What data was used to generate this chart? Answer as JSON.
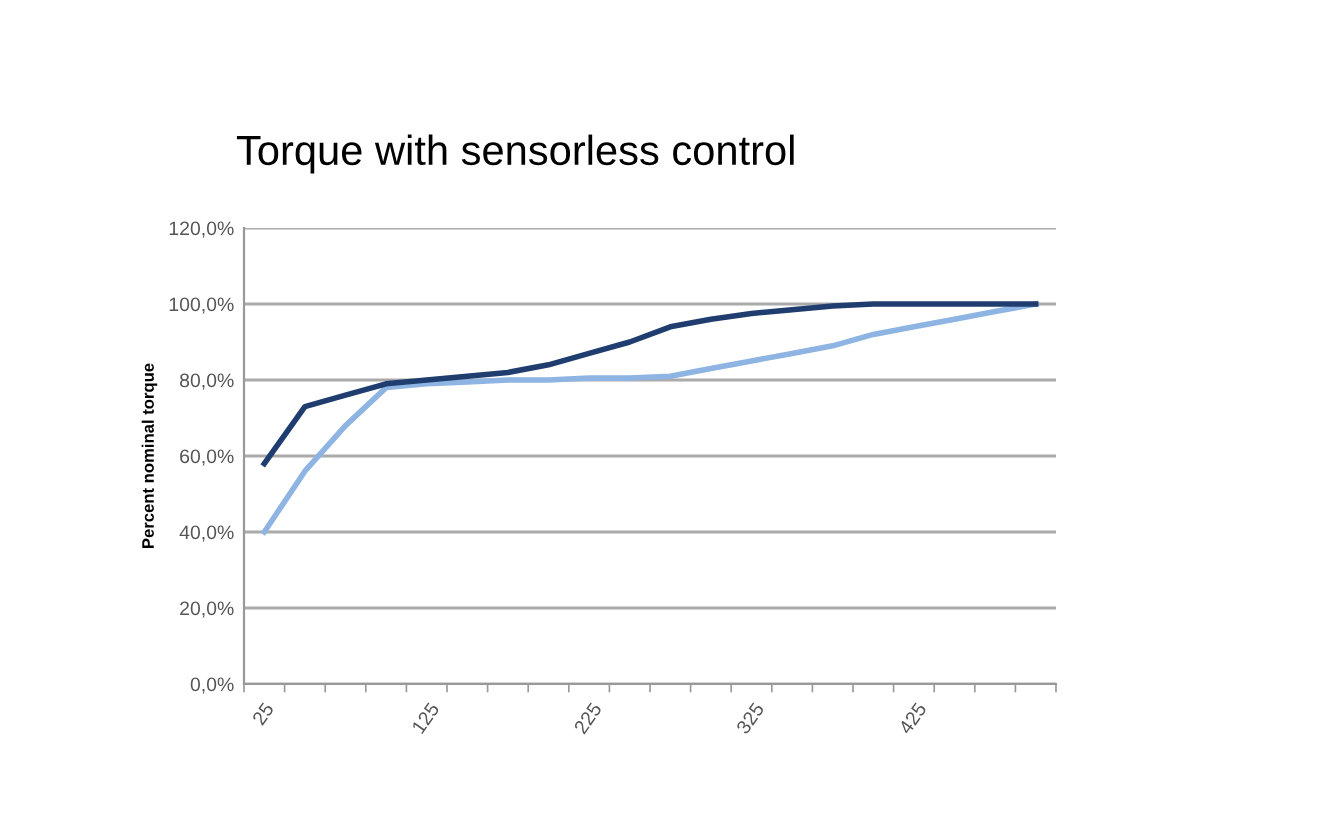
{
  "chart_data": {
    "type": "line",
    "title": "Torque with sensorless control",
    "ylabel": "Percent nominal torque",
    "categories": [
      "25",
      null,
      null,
      null,
      "125",
      null,
      null,
      null,
      "225",
      null,
      null,
      null,
      "325",
      null,
      null,
      null,
      "425",
      null,
      null,
      null
    ],
    "series": [
      {
        "color": "#8db4e2",
        "values": [
          40,
          56,
          68,
          78,
          79,
          79.5,
          80,
          80,
          80.5,
          80.5,
          81,
          83,
          85,
          87,
          89,
          92,
          94,
          96,
          98,
          100
        ]
      },
      {
        "color": "#1f3d6e",
        "values": [
          58,
          73,
          76,
          79,
          80,
          81,
          82,
          84,
          87,
          90,
          94,
          96,
          97.5,
          98.5,
          99.5,
          100,
          100,
          100,
          100,
          100
        ]
      }
    ],
    "ylim": [
      0,
      120
    ],
    "yticks": [
      {
        "value": 0,
        "label": "0,0%"
      },
      {
        "value": 20,
        "label": "20,0%"
      },
      {
        "value": 40,
        "label": "40,0%"
      },
      {
        "value": 60,
        "label": "60,0%"
      },
      {
        "value": 80,
        "label": "80,0%"
      },
      {
        "value": 100,
        "label": "100,0%"
      },
      {
        "value": 120,
        "label": "120,0%"
      }
    ],
    "grid": "y",
    "marker": "none",
    "line_style": "solid"
  }
}
